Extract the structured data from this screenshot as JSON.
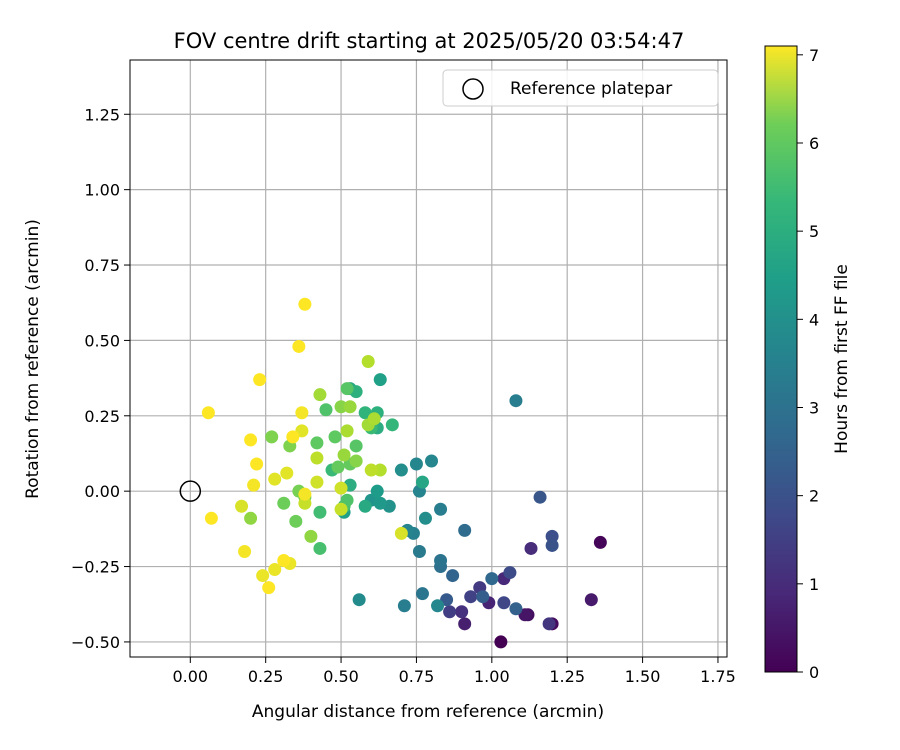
{
  "chart_data": {
    "type": "scatter",
    "title": "FOV centre drift starting at 2025/05/20 03:54:47",
    "xlabel": "Angular distance from reference (arcmin)",
    "ylabel": "Rotation from reference (arcmin)",
    "xlim": [
      -0.2,
      1.78
    ],
    "ylim": [
      -0.55,
      1.43
    ],
    "xticks": [
      "0.00",
      "0.25",
      "0.50",
      "0.75",
      "1.00",
      "1.25",
      "1.50",
      "1.75"
    ],
    "yticks": [
      "−0.50",
      "−0.25",
      "0.00",
      "0.25",
      "0.50",
      "0.75",
      "1.00",
      "1.25"
    ],
    "xtick_values": [
      0,
      0.25,
      0.5,
      0.75,
      1.0,
      1.25,
      1.5,
      1.75
    ],
    "ytick_values": [
      -0.5,
      -0.25,
      0,
      0.25,
      0.5,
      0.75,
      1.0,
      1.25
    ],
    "grid": true,
    "legend": {
      "placement": "top-right",
      "entries": [
        {
          "label": "Reference platepar",
          "marker": "open-circle",
          "x": 0,
          "y": 0
        }
      ]
    },
    "colorbar": {
      "label": "Hours from first FF file",
      "colormap": "viridis",
      "range": [
        0,
        7.1
      ],
      "ticks": [
        "0",
        "1",
        "2",
        "3",
        "4",
        "5",
        "6",
        "7"
      ],
      "tick_values": [
        0,
        1,
        2,
        3,
        4,
        5,
        6,
        7
      ]
    },
    "series": [
      {
        "points": [
          [
            1.03,
            -0.5,
            0.0
          ],
          [
            1.36,
            -0.17,
            0.1
          ],
          [
            1.2,
            -0.44,
            0.2
          ],
          [
            1.12,
            -0.41,
            0.3
          ],
          [
            1.11,
            -0.41,
            0.4
          ],
          [
            1.33,
            -0.36,
            0.5
          ],
          [
            0.91,
            -0.44,
            0.6
          ],
          [
            0.99,
            -0.37,
            0.7
          ],
          [
            1.04,
            -0.29,
            0.8
          ],
          [
            1.13,
            -0.19,
            0.9
          ],
          [
            0.9,
            -0.4,
            1.0
          ],
          [
            1.19,
            -0.44,
            1.1
          ],
          [
            0.96,
            -0.32,
            1.2
          ],
          [
            0.86,
            -0.4,
            1.3
          ],
          [
            0.93,
            -0.35,
            1.4
          ],
          [
            1.04,
            -0.37,
            1.5
          ],
          [
            1.06,
            -0.27,
            1.6
          ],
          [
            1.2,
            -0.15,
            1.7
          ],
          [
            1.2,
            -0.18,
            1.8
          ],
          [
            1.16,
            -0.02,
            1.9
          ],
          [
            0.85,
            -0.36,
            2.0
          ],
          [
            0.97,
            -0.35,
            2.1
          ],
          [
            1.08,
            -0.39,
            2.2
          ],
          [
            0.87,
            -0.28,
            2.3
          ],
          [
            1.0,
            -0.29,
            2.4
          ],
          [
            0.91,
            -0.13,
            2.5
          ],
          [
            0.83,
            -0.25,
            2.6
          ],
          [
            0.83,
            -0.23,
            2.7
          ],
          [
            0.77,
            -0.34,
            2.8
          ],
          [
            0.76,
            -0.2,
            2.9
          ],
          [
            0.83,
            -0.06,
            3.0
          ],
          [
            1.08,
            0.3,
            3.0
          ],
          [
            0.71,
            -0.38,
            3.0
          ],
          [
            0.74,
            -0.14,
            3.1
          ],
          [
            0.72,
            -0.13,
            3.2
          ],
          [
            0.76,
            0.0,
            3.2
          ],
          [
            0.75,
            0.09,
            3.3
          ],
          [
            0.8,
            0.1,
            3.3
          ],
          [
            0.82,
            -0.38,
            3.3
          ],
          [
            0.56,
            -0.36,
            3.4
          ],
          [
            0.7,
            0.07,
            3.5
          ],
          [
            0.78,
            -0.09,
            3.5
          ],
          [
            0.66,
            -0.05,
            3.6
          ],
          [
            0.6,
            -0.03,
            3.7
          ],
          [
            0.63,
            -0.04,
            3.8
          ],
          [
            0.62,
            0.0,
            3.9
          ],
          [
            0.51,
            -0.07,
            4.0
          ],
          [
            0.63,
            0.37,
            4.0
          ],
          [
            0.77,
            0.03,
            4.2
          ],
          [
            0.58,
            -0.05,
            4.3
          ],
          [
            0.53,
            0.34,
            4.3
          ],
          [
            0.53,
            0.02,
            4.4
          ],
          [
            0.62,
            0.21,
            4.4
          ],
          [
            0.55,
            0.33,
            4.5
          ],
          [
            0.62,
            0.26,
            4.5
          ],
          [
            0.58,
            0.26,
            4.6
          ],
          [
            0.67,
            0.22,
            4.7
          ],
          [
            0.6,
            0.21,
            4.8
          ],
          [
            0.47,
            0.07,
            4.8
          ],
          [
            0.43,
            -0.07,
            4.9
          ],
          [
            0.43,
            -0.19,
            5.0
          ],
          [
            0.51,
            -0.05,
            5.0
          ],
          [
            0.52,
            -0.03,
            5.1
          ],
          [
            0.45,
            0.27,
            5.1
          ],
          [
            0.52,
            0.34,
            5.2
          ],
          [
            0.55,
            0.15,
            5.2
          ],
          [
            0.42,
            0.16,
            5.3
          ],
          [
            0.48,
            0.18,
            5.3
          ],
          [
            0.49,
            0.08,
            5.4
          ],
          [
            0.53,
            0.09,
            5.4
          ],
          [
            0.31,
            -0.04,
            5.5
          ],
          [
            0.35,
            -0.1,
            5.5
          ],
          [
            0.38,
            -0.02,
            5.6
          ],
          [
            0.36,
            0.0,
            5.6
          ],
          [
            0.33,
            0.15,
            5.7
          ],
          [
            0.27,
            0.18,
            5.7
          ],
          [
            0.5,
            0.28,
            5.8
          ],
          [
            0.55,
            0.1,
            5.8
          ],
          [
            0.4,
            -0.15,
            5.9
          ],
          [
            0.2,
            -0.09,
            5.9
          ],
          [
            0.53,
            0.28,
            6.0
          ],
          [
            0.51,
            0.12,
            6.0
          ],
          [
            0.43,
            0.32,
            6.1
          ],
          [
            0.59,
            0.22,
            6.1
          ],
          [
            0.52,
            0.2,
            6.2
          ],
          [
            0.61,
            0.24,
            6.2
          ],
          [
            0.63,
            0.07,
            6.3
          ],
          [
            0.59,
            0.43,
            6.3
          ],
          [
            0.6,
            0.07,
            6.4
          ],
          [
            0.42,
            0.11,
            6.4
          ],
          [
            0.38,
            -0.04,
            6.5
          ],
          [
            0.5,
            -0.06,
            6.5
          ],
          [
            0.5,
            0.01,
            6.6
          ],
          [
            0.42,
            0.03,
            6.6
          ],
          [
            0.7,
            -0.14,
            6.7
          ],
          [
            0.17,
            -0.05,
            6.7
          ],
          [
            0.28,
            0.04,
            6.8
          ],
          [
            0.32,
            0.06,
            6.8
          ],
          [
            0.37,
            0.2,
            6.8
          ],
          [
            0.24,
            -0.28,
            6.9
          ],
          [
            0.28,
            -0.26,
            6.9
          ],
          [
            0.33,
            -0.24,
            6.9
          ],
          [
            0.21,
            0.02,
            7.0
          ],
          [
            0.38,
            -0.01,
            7.0
          ],
          [
            0.37,
            0.26,
            7.0
          ],
          [
            0.18,
            -0.2,
            7.0
          ],
          [
            0.07,
            -0.09,
            7.1
          ],
          [
            0.06,
            0.26,
            7.1
          ],
          [
            0.22,
            0.09,
            7.1
          ],
          [
            0.2,
            0.17,
            7.1
          ],
          [
            0.23,
            0.37,
            7.1
          ],
          [
            0.31,
            -0.23,
            7.1
          ],
          [
            0.26,
            -0.32,
            7.1
          ],
          [
            0.34,
            0.18,
            7.1
          ],
          [
            0.36,
            0.48,
            7.1
          ],
          [
            0.38,
            0.62,
            7.1
          ]
        ]
      }
    ]
  }
}
